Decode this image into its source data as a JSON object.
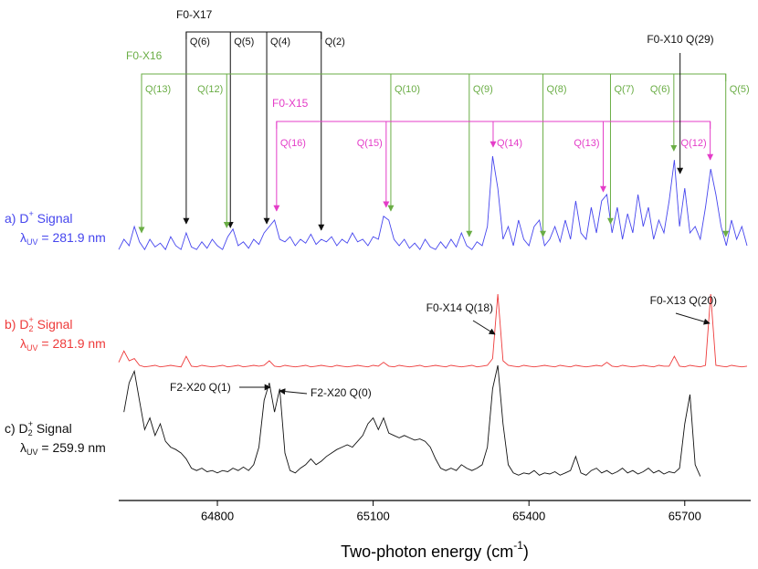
{
  "chart_data": {
    "type": "line",
    "x_label": "Two-photon energy (cm",
    "x_label_sup": "-1",
    "x_label_tail": ")",
    "xlim": [
      64610,
      65827
    ],
    "xticks": [
      64800,
      65100,
      65400,
      65700
    ],
    "x": [
      64610,
      64620,
      64630,
      64640,
      64650,
      64660,
      64670,
      64680,
      64690,
      64700,
      64710,
      64720,
      64730,
      64740,
      64750,
      64760,
      64770,
      64780,
      64790,
      64800,
      64810,
      64820,
      64830,
      64840,
      64850,
      64860,
      64870,
      64880,
      64890,
      64900,
      64910,
      64920,
      64930,
      64940,
      64950,
      64960,
      64970,
      64980,
      64990,
      65000,
      65010,
      65020,
      65030,
      65040,
      65050,
      65060,
      65070,
      65080,
      65090,
      65100,
      65110,
      65120,
      65130,
      65140,
      65150,
      65160,
      65170,
      65180,
      65190,
      65200,
      65210,
      65220,
      65230,
      65240,
      65250,
      65260,
      65270,
      65280,
      65290,
      65300,
      65310,
      65320,
      65330,
      65340,
      65350,
      65360,
      65370,
      65380,
      65390,
      65400,
      65410,
      65420,
      65430,
      65440,
      65450,
      65460,
      65470,
      65480,
      65490,
      65500,
      65510,
      65520,
      65530,
      65540,
      65550,
      65560,
      65570,
      65580,
      65590,
      65600,
      65610,
      65620,
      65630,
      65640,
      65650,
      65660,
      65670,
      65680,
      65690,
      65700,
      65710,
      65720,
      65730,
      65740,
      65750,
      65760,
      65770,
      65780,
      65790,
      65800,
      65810,
      65820
    ],
    "series": [
      {
        "label": "a) D",
        "label_sup": "+",
        "label_tail": " Signal",
        "wavelength_symbol": "λ",
        "wavelength_sub": "UV",
        "wavelength": " = 281.9 nm",
        "color": "#4646ee",
        "values": [
          0.12,
          0.2,
          0.15,
          0.3,
          0.18,
          0.12,
          0.2,
          0.14,
          0.17,
          0.12,
          0.22,
          0.15,
          0.12,
          0.25,
          0.14,
          0.12,
          0.18,
          0.13,
          0.2,
          0.15,
          0.12,
          0.22,
          0.28,
          0.15,
          0.18,
          0.13,
          0.2,
          0.16,
          0.25,
          0.3,
          0.35,
          0.2,
          0.18,
          0.22,
          0.15,
          0.2,
          0.17,
          0.24,
          0.16,
          0.2,
          0.18,
          0.22,
          0.15,
          0.2,
          0.17,
          0.25,
          0.18,
          0.2,
          0.15,
          0.22,
          0.2,
          0.38,
          0.35,
          0.2,
          0.15,
          0.2,
          0.13,
          0.17,
          0.12,
          0.2,
          0.14,
          0.12,
          0.18,
          0.13,
          0.2,
          0.14,
          0.25,
          0.15,
          0.12,
          0.18,
          0.15,
          0.3,
          0.85,
          0.6,
          0.2,
          0.3,
          0.15,
          0.35,
          0.2,
          0.15,
          0.3,
          0.35,
          0.15,
          0.2,
          0.3,
          0.18,
          0.35,
          0.2,
          0.5,
          0.25,
          0.2,
          0.45,
          0.25,
          0.5,
          0.55,
          0.25,
          0.45,
          0.2,
          0.4,
          0.25,
          0.55,
          0.3,
          0.45,
          0.2,
          0.35,
          0.25,
          0.5,
          0.82,
          0.3,
          0.6,
          0.25,
          0.3,
          0.2,
          0.45,
          0.75,
          0.55,
          0.3,
          0.15,
          0.35,
          0.2,
          0.3,
          0.15
        ]
      },
      {
        "label": "b) D",
        "label_sup": "2",
        "label_sup2": "+",
        "label_tail": " Signal",
        "wavelength_symbol": "λ",
        "wavelength_sub": "UV",
        "wavelength": " = 281.9 nm",
        "color": "#ee3b3b",
        "values": [
          0.1,
          0.25,
          0.12,
          0.15,
          0.06,
          0.04,
          0.05,
          0.06,
          0.04,
          0.05,
          0.06,
          0.05,
          0.04,
          0.18,
          0.05,
          0.04,
          0.06,
          0.05,
          0.04,
          0.05,
          0.06,
          0.04,
          0.05,
          0.06,
          0.04,
          0.05,
          0.06,
          0.05,
          0.06,
          0.12,
          0.05,
          0.04,
          0.06,
          0.05,
          0.04,
          0.05,
          0.06,
          0.04,
          0.05,
          0.06,
          0.05,
          0.04,
          0.06,
          0.05,
          0.04,
          0.05,
          0.06,
          0.05,
          0.04,
          0.06,
          0.05,
          0.1,
          0.05,
          0.04,
          0.06,
          0.05,
          0.04,
          0.05,
          0.06,
          0.04,
          0.05,
          0.06,
          0.05,
          0.04,
          0.06,
          0.05,
          0.04,
          0.05,
          0.06,
          0.04,
          0.05,
          0.06,
          0.15,
          1.0,
          0.12,
          0.06,
          0.05,
          0.04,
          0.06,
          0.05,
          0.04,
          0.05,
          0.06,
          0.05,
          0.04,
          0.06,
          0.05,
          0.04,
          0.06,
          0.05,
          0.04,
          0.05,
          0.06,
          0.05,
          0.1,
          0.05,
          0.04,
          0.06,
          0.05,
          0.04,
          0.05,
          0.06,
          0.05,
          0.04,
          0.06,
          0.05,
          0.05,
          0.18,
          0.05,
          0.04,
          0.06,
          0.05,
          0.04,
          0.06,
          1.0,
          0.06,
          0.05,
          0.04,
          0.06,
          0.05,
          0.04,
          0.05
        ]
      },
      {
        "label": "c) D",
        "label_sup": "2",
        "label_sup2": "+",
        "label_tail": " Signal",
        "wavelength_symbol": "λ",
        "wavelength_sub": "UV",
        "wavelength": " = 259.9 nm",
        "color": "#111111",
        "values": [
          null,
          0.6,
          0.85,
          0.95,
          0.7,
          0.45,
          0.55,
          0.4,
          0.5,
          0.35,
          0.3,
          0.28,
          0.25,
          0.2,
          0.12,
          0.1,
          0.12,
          0.09,
          0.1,
          0.08,
          0.1,
          0.09,
          0.12,
          0.1,
          0.13,
          0.1,
          0.15,
          0.3,
          0.7,
          0.85,
          0.6,
          0.8,
          0.25,
          0.1,
          0.08,
          0.12,
          0.15,
          0.2,
          0.15,
          0.18,
          0.22,
          0.25,
          0.28,
          0.3,
          0.32,
          0.3,
          0.35,
          0.4,
          0.5,
          0.55,
          0.45,
          0.55,
          0.42,
          0.4,
          0.38,
          0.4,
          0.38,
          0.36,
          0.37,
          0.35,
          0.3,
          0.2,
          0.12,
          0.1,
          0.12,
          0.1,
          0.15,
          0.12,
          0.1,
          0.12,
          0.15,
          0.3,
          0.8,
          1.0,
          0.5,
          0.15,
          0.08,
          0.06,
          0.08,
          0.07,
          0.1,
          0.06,
          0.08,
          0.07,
          0.09,
          0.06,
          0.08,
          0.1,
          0.22,
          0.08,
          0.06,
          0.1,
          0.12,
          0.08,
          0.1,
          0.07,
          0.09,
          0.12,
          0.08,
          0.1,
          0.07,
          0.09,
          0.12,
          0.08,
          0.1,
          0.07,
          0.09,
          0.08,
          0.12,
          0.5,
          0.75,
          0.15,
          0.05,
          null,
          null,
          null,
          null,
          null,
          null,
          null,
          null,
          null
        ]
      }
    ],
    "assignments": [
      {
        "label": "F0-X17",
        "color": "#111111",
        "lines": [
          {
            "label": "Q(6)",
            "x": 64740
          },
          {
            "label": "Q(5)",
            "x": 64825
          },
          {
            "label": "Q(4)",
            "x": 64895
          },
          {
            "label": "Q(2)",
            "x": 65000
          }
        ]
      },
      {
        "label": "F0-X16",
        "color": "#6aad45",
        "lines": [
          {
            "label": "Q(13)",
            "x": 64654
          },
          {
            "label": "Q(12)",
            "x": 64818
          },
          {
            "label": "Q(10)",
            "x": 65134
          },
          {
            "label": "Q(9)",
            "x": 65285
          },
          {
            "label": "Q(8)",
            "x": 65427
          },
          {
            "label": "Q(7)",
            "x": 65557
          },
          {
            "label": "Q(6)",
            "x": 65679
          },
          {
            "label": "Q(5)",
            "x": 65779
          }
        ]
      },
      {
        "label": "F0-X15",
        "color": "#e43cc8",
        "lines": [
          {
            "label": "Q(16)",
            "x": 64914
          },
          {
            "label": "Q(15)",
            "x": 65125
          },
          {
            "label": "Q(14)",
            "x": 65331
          },
          {
            "label": "Q(13)",
            "x": 65543
          },
          {
            "label": "Q(12)",
            "x": 65749
          }
        ]
      },
      {
        "label": "F0-X10 Q(29)",
        "color": "#111111",
        "lines": [
          {
            "x": 65691
          }
        ]
      }
    ],
    "peak_labels": [
      "F0-X14 Q(18)",
      "F0-X13 Q(20)",
      "F2-X20 Q(1)",
      "F2-X20 Q(0)"
    ]
  }
}
